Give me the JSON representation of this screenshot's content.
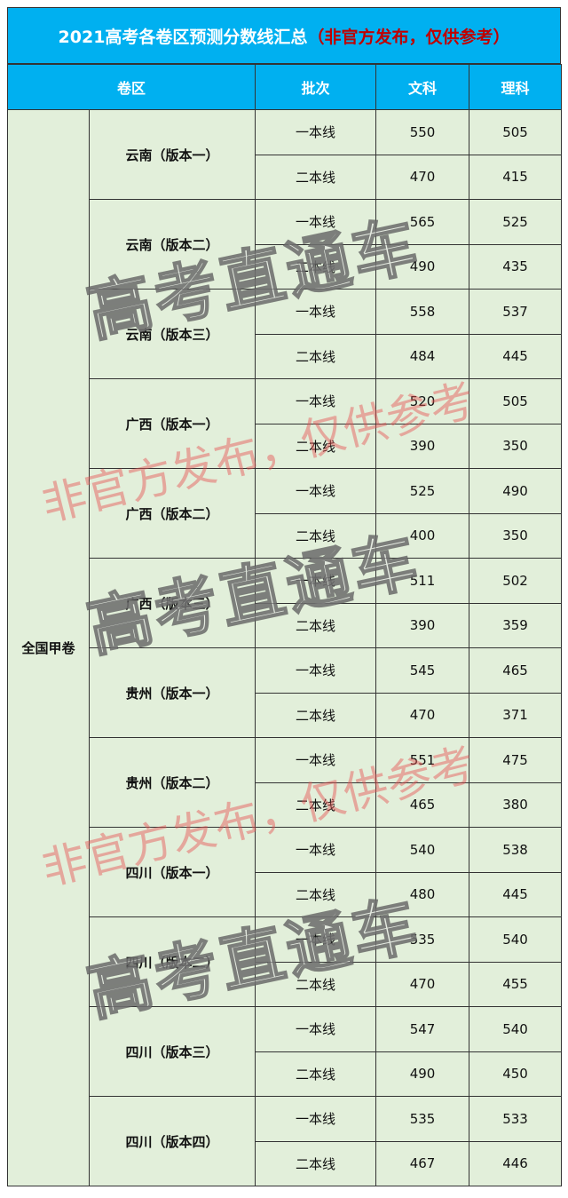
{
  "title": {
    "main": "2021高考各卷区预测分数线汇总",
    "note": "（非官方发布，仅供参考）"
  },
  "headers": {
    "region": "卷区",
    "batch": "批次",
    "wenke": "文科",
    "like": "理科"
  },
  "paper": "全国甲卷",
  "regions": [
    {
      "name": "云南（版本一）",
      "rows": [
        {
          "batch": "一本线",
          "wenke": "550",
          "like": "505"
        },
        {
          "batch": "二本线",
          "wenke": "470",
          "like": "415"
        }
      ]
    },
    {
      "name": "云南（版本二）",
      "rows": [
        {
          "batch": "一本线",
          "wenke": "565",
          "like": "525"
        },
        {
          "batch": "二本线",
          "wenke": "490",
          "like": "435"
        }
      ]
    },
    {
      "name": "云南（版本三）",
      "rows": [
        {
          "batch": "一本线",
          "wenke": "558",
          "like": "537"
        },
        {
          "batch": "二本线",
          "wenke": "484",
          "like": "445"
        }
      ]
    },
    {
      "name": "广西（版本一）",
      "rows": [
        {
          "batch": "一本线",
          "wenke": "520",
          "like": "505"
        },
        {
          "batch": "二本线",
          "wenke": "390",
          "like": "350"
        }
      ]
    },
    {
      "name": "广西（版本二）",
      "rows": [
        {
          "batch": "一本线",
          "wenke": "525",
          "like": "490"
        },
        {
          "batch": "二本线",
          "wenke": "400",
          "like": "350"
        }
      ]
    },
    {
      "name": "广西（版本三）",
      "rows": [
        {
          "batch": "一本线",
          "wenke": "511",
          "like": "502"
        },
        {
          "batch": "二本线",
          "wenke": "390",
          "like": "359"
        }
      ]
    },
    {
      "name": "贵州（版本一）",
      "rows": [
        {
          "batch": "一本线",
          "wenke": "545",
          "like": "465"
        },
        {
          "batch": "二本线",
          "wenke": "470",
          "like": "371"
        }
      ]
    },
    {
      "name": "贵州（版本二）",
      "rows": [
        {
          "batch": "一本线",
          "wenke": "551",
          "like": "475"
        },
        {
          "batch": "二本线",
          "wenke": "465",
          "like": "380"
        }
      ]
    },
    {
      "name": "四川（版本一）",
      "rows": [
        {
          "batch": "一本线",
          "wenke": "540",
          "like": "538"
        },
        {
          "batch": "二本线",
          "wenke": "480",
          "like": "445"
        }
      ]
    },
    {
      "name": "四川（版本二）",
      "rows": [
        {
          "batch": "一本线",
          "wenke": "535",
          "like": "540"
        },
        {
          "batch": "二本线",
          "wenke": "470",
          "like": "455"
        }
      ]
    },
    {
      "name": "四川（版本三）",
      "rows": [
        {
          "batch": "一本线",
          "wenke": "547",
          "like": "540"
        },
        {
          "batch": "二本线",
          "wenke": "490",
          "like": "450"
        }
      ]
    },
    {
      "name": "四川（版本四）",
      "rows": [
        {
          "batch": "一本线",
          "wenke": "535",
          "like": "533"
        },
        {
          "batch": "二本线",
          "wenke": "467",
          "like": "446"
        }
      ]
    }
  ],
  "watermarks": {
    "brand": "高考直通车",
    "notice": "非官方发布，仅供参考"
  },
  "colors": {
    "header": "#00b0f0",
    "cell": "#e2efda",
    "note": "#c00000"
  }
}
